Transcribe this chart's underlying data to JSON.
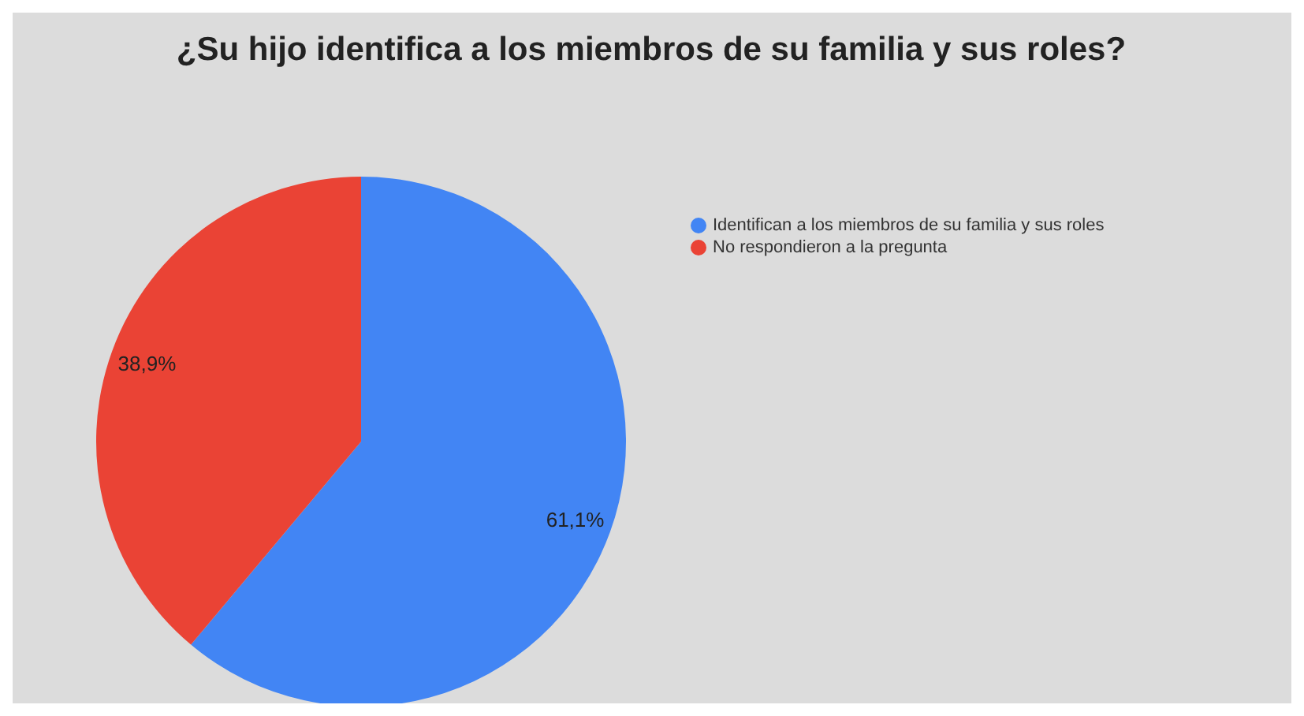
{
  "chart_data": {
    "type": "pie",
    "title": "¿Su hijo identifica a los miembros de su familia y sus roles?",
    "categories": [
      "Identifican a los miembros de su familia y sus roles",
      "No respondieron a la pregunta"
    ],
    "values": [
      61.1,
      38.9
    ],
    "colors": [
      "#4285f4",
      "#ea4335"
    ],
    "value_labels": [
      "61,1%",
      "38,9%"
    ],
    "legend": "top right"
  }
}
